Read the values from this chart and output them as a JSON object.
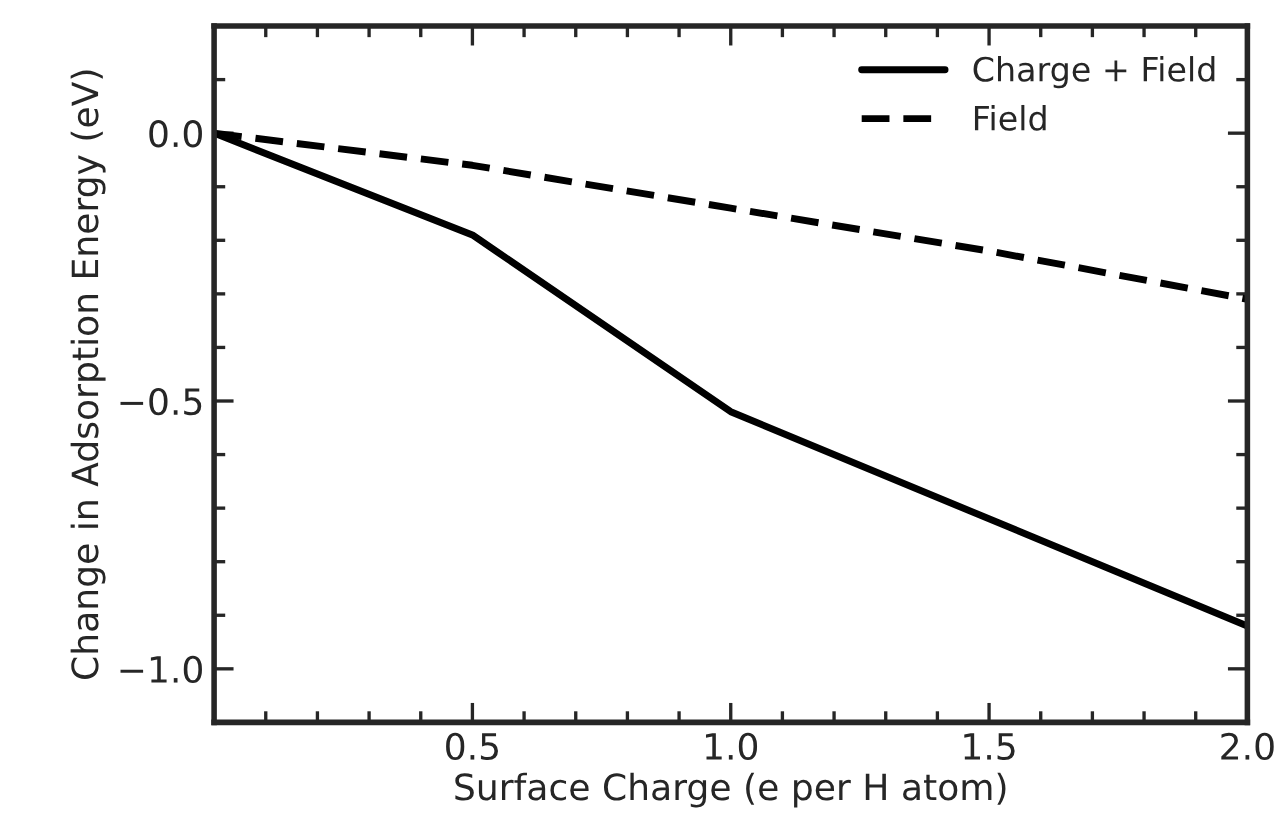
{
  "chart_data": {
    "type": "line",
    "xlabel": "Surface Charge (e per H atom)",
    "ylabel": "Change in Adsorption Energy (eV)",
    "series": [
      {
        "name": "Charge + Field",
        "color": "#000000",
        "line_style": "solid",
        "x": [
          0,
          0.5,
          1.0,
          2.0
        ],
        "values": [
          0.0,
          -0.19,
          -0.52,
          -0.92
        ]
      },
      {
        "name": "Field",
        "color": "#000000",
        "line_style": "dashed",
        "x": [
          0,
          0.5,
          1.0,
          1.5,
          2.0
        ],
        "values": [
          0.0,
          -0.06,
          -0.14,
          -0.22,
          -0.31
        ]
      }
    ],
    "xlim": [
      0,
      2.0
    ],
    "ylim": [
      -1.1,
      0.2
    ],
    "xticks": [
      {
        "value": 0,
        "label": null
      },
      {
        "value": 0.1,
        "label": null
      },
      {
        "value": 0.2,
        "label": null
      },
      {
        "value": 0.3,
        "label": null
      },
      {
        "value": 0.4,
        "label": null
      },
      {
        "value": 0.5,
        "label": "0.5"
      },
      {
        "value": 0.6,
        "label": null
      },
      {
        "value": 0.7,
        "label": null
      },
      {
        "value": 0.8,
        "label": null
      },
      {
        "value": 0.9,
        "label": null
      },
      {
        "value": 1.0,
        "label": "1.0"
      },
      {
        "value": 1.1,
        "label": null
      },
      {
        "value": 1.2,
        "label": null
      },
      {
        "value": 1.3,
        "label": null
      },
      {
        "value": 1.4,
        "label": null
      },
      {
        "value": 1.5,
        "label": "1.5"
      },
      {
        "value": 1.6,
        "label": null
      },
      {
        "value": 1.7,
        "label": null
      },
      {
        "value": 1.8,
        "label": null
      },
      {
        "value": 1.9,
        "label": null
      },
      {
        "value": 2.0,
        "label": "2.0"
      }
    ],
    "yticks": [
      {
        "value": -1.1,
        "label": null
      },
      {
        "value": -1.0,
        "label": "−1.0"
      },
      {
        "value": -0.9,
        "label": null
      },
      {
        "value": -0.8,
        "label": null
      },
      {
        "value": -0.7,
        "label": null
      },
      {
        "value": -0.6,
        "label": null
      },
      {
        "value": -0.5,
        "label": "−0.5"
      },
      {
        "value": -0.4,
        "label": null
      },
      {
        "value": -0.3,
        "label": null
      },
      {
        "value": -0.2,
        "label": null
      },
      {
        "value": -0.1,
        "label": null
      },
      {
        "value": 0.0,
        "label": "0.0"
      },
      {
        "value": 0.1,
        "label": null
      },
      {
        "value": 0.2,
        "label": null
      }
    ],
    "grid": false,
    "legend": "top right",
    "marker": "none"
  }
}
